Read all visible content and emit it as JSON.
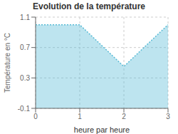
{
  "chart_data": {
    "type": "area",
    "title": "Evolution de la température",
    "xlabel": "heure par heure",
    "ylabel": "Température en °C",
    "x": [
      0,
      1,
      2,
      3
    ],
    "values": [
      1.0,
      1.0,
      0.45,
      1.0
    ],
    "xlim": [
      0,
      3
    ],
    "ylim": [
      -0.1,
      1.1
    ],
    "xticks": [
      0,
      1,
      2,
      3
    ],
    "yticks": [
      -0.1,
      0.3,
      0.7,
      1.1
    ],
    "color": "#5bbcd6",
    "line_style": "dotted",
    "grid": true
  }
}
